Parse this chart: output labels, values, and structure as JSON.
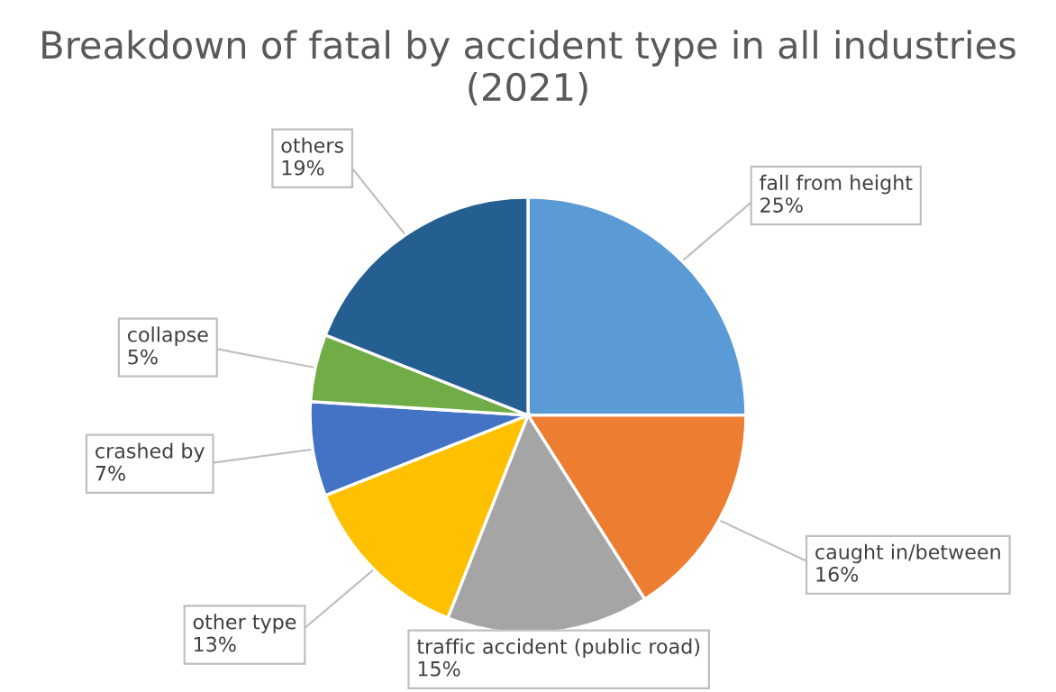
{
  "chart_data": {
    "type": "pie",
    "title": "Breakdown of fatal by accident type in all industries (2021)",
    "categories": [
      "fall from height",
      "caught in/between",
      "traffic accident (public road)",
      "other type",
      "crashed by",
      "collapse",
      "others"
    ],
    "values": [
      25,
      16,
      15,
      13,
      7,
      5,
      19
    ],
    "value_labels": [
      "25%",
      "16%",
      "15%",
      "13%",
      "7%",
      "5%",
      "19%"
    ],
    "colors": [
      "#5b9bd5",
      "#ed7d31",
      "#a5a5a5",
      "#ffc000",
      "#4472c4",
      "#70ad47",
      "#255e91"
    ],
    "legend": false
  }
}
